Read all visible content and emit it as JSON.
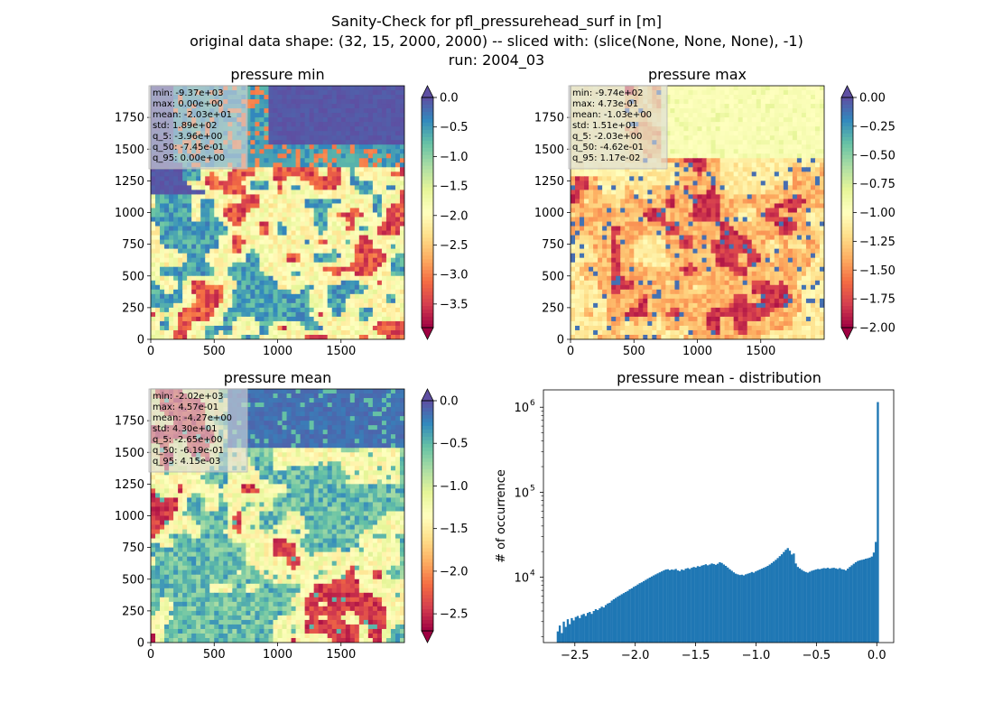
{
  "suptitle": [
    "Sanity-Check for pfl_pressurehead_surf in [m]",
    "original data shape: (32, 15, 2000, 2000) -- sliced with: (slice(None, None, None), -1)",
    "run: 2004_03"
  ],
  "chart_data": [
    {
      "type": "heatmap",
      "title": "pressure min",
      "colormap": "Spectral",
      "xlim": [
        0,
        2000
      ],
      "ylim": [
        0,
        2000
      ],
      "x_ticks": [
        "0",
        "500",
        "1000",
        "1500"
      ],
      "y_ticks": [
        "0",
        "250",
        "500",
        "750",
        "1000",
        "1250",
        "1500",
        "1750"
      ],
      "colorbar": {
        "range": [
          -3.9,
          0.0
        ],
        "extend": "both",
        "ticks": [
          -3.5,
          -3.0,
          -2.5,
          -2.0,
          -1.5,
          -1.0,
          -0.5,
          0.0
        ],
        "tick_labels": [
          "−3.5",
          "−3.0",
          "−2.5",
          "−2.0",
          "−1.5",
          "−1.0",
          "−0.5",
          "0.0"
        ]
      },
      "stats": [
        "min: -9.37e+03",
        "max: 0.00e+00",
        "mean: -2.03e+01",
        "std: 1.89e+02",
        "q_5: -3.96e+00",
        "q_50: -7.45e-01",
        "q_95: 0.00e+00"
      ]
    },
    {
      "type": "heatmap",
      "title": "pressure max",
      "colormap": "Spectral",
      "xlim": [
        0,
        2000
      ],
      "ylim": [
        0,
        2000
      ],
      "x_ticks": [
        "0",
        "500",
        "1000",
        "1500"
      ],
      "y_ticks": [
        "0",
        "250",
        "500",
        "750",
        "1000",
        "1250",
        "1500",
        "1750"
      ],
      "colorbar": {
        "range": [
          -2.0,
          0.0
        ],
        "extend": "both",
        "ticks": [
          -2.0,
          -1.75,
          -1.5,
          -1.25,
          -1.0,
          -0.75,
          -0.5,
          -0.25,
          0.0
        ],
        "tick_labels": [
          "−2.00",
          "−1.75",
          "−1.50",
          "−1.25",
          "−1.00",
          "−0.75",
          "−0.50",
          "−0.25",
          "0.00"
        ]
      },
      "stats": [
        "min: -9.74e+02",
        "max: 4.73e-01",
        "mean: -1.03e+00",
        "std: 1.51e+01",
        "q_5: -2.03e+00",
        "q_50: -4.62e-01",
        "q_95: 1.17e-02"
      ]
    },
    {
      "type": "heatmap",
      "title": "pressure mean",
      "colormap": "Spectral",
      "xlim": [
        0,
        2000
      ],
      "ylim": [
        0,
        2000
      ],
      "x_ticks": [
        "0",
        "500",
        "1000",
        "1500"
      ],
      "y_ticks": [
        "0",
        "250",
        "500",
        "750",
        "1000",
        "1250",
        "1500",
        "1750"
      ],
      "colorbar": {
        "range": [
          -2.7,
          0.0
        ],
        "extend": "both",
        "ticks": [
          -2.5,
          -2.0,
          -1.5,
          -1.0,
          -0.5,
          0.0
        ],
        "tick_labels": [
          "−2.5",
          "−2.0",
          "−1.5",
          "−1.0",
          "−0.5",
          "0.0"
        ]
      },
      "stats": [
        "min: -2.02e+03",
        "max: 4.57e-01",
        "mean: -4.27e+00",
        "std: 4.30e+01",
        "q_5: -2.65e+00",
        "q_50: -6.19e-01",
        "q_95: 4.15e-03"
      ]
    },
    {
      "type": "bar",
      "title": "pressure mean - distribution",
      "ylabel": "# of occurrence",
      "xlabel": "",
      "y_scale": "log",
      "xlim": [
        -2.76,
        0.14
      ],
      "ylim": [
        1700,
        1600000
      ],
      "x_ticks": [
        -2.5,
        -2.0,
        -1.5,
        -1.0,
        -0.5,
        0.0
      ],
      "x_tick_labels": [
        "−2.5",
        "−2.0",
        "−1.5",
        "−1.0",
        "−0.5",
        "0.0"
      ],
      "y_ticks": [
        10000,
        100000,
        1000000
      ],
      "y_tick_labels": [
        "10",
        "10",
        "10"
      ],
      "y_tick_exponents": [
        "4",
        "5",
        "6"
      ],
      "color": "#1f77b4",
      "bins": {
        "start": -2.65,
        "end": 0.0,
        "count": 160
      },
      "counts": [
        2300,
        2700,
        2200,
        3000,
        2600,
        3200,
        2800,
        3300,
        3100,
        3400,
        3500,
        3300,
        3600,
        3700,
        3500,
        3800,
        3900,
        3700,
        4000,
        4200,
        4100,
        4300,
        4500,
        4400,
        4700,
        4900,
        5000,
        5300,
        5500,
        5700,
        5900,
        6100,
        6300,
        6500,
        6700,
        6900,
        7200,
        7400,
        7700,
        7900,
        8200,
        8500,
        8700,
        9000,
        9300,
        9600,
        9900,
        10200,
        10500,
        10800,
        11100,
        11400,
        11700,
        12000,
        12300,
        12400,
        12100,
        12300,
        12200,
        12500,
        12000,
        11800,
        12300,
        12100,
        12600,
        12800,
        12500,
        12900,
        13200,
        13000,
        13500,
        13300,
        13700,
        13900,
        14200,
        13800,
        14100,
        14500,
        14300,
        14000,
        14400,
        15000,
        14700,
        14100,
        13600,
        13000,
        12400,
        11900,
        11400,
        11000,
        10800,
        10600,
        10700,
        10500,
        10800,
        11000,
        11200,
        11500,
        11300,
        11700,
        12000,
        12300,
        12600,
        12900,
        13200,
        13600,
        14100,
        14700,
        15300,
        16000,
        16800,
        17700,
        18600,
        19800,
        21000,
        22000,
        20500,
        18500,
        19000,
        14500,
        13200,
        12700,
        12200,
        11800,
        11500,
        11300,
        11600,
        11900,
        12100,
        12300,
        12500,
        12400,
        12600,
        12800,
        12700,
        12900,
        12600,
        12800,
        12900,
        12700,
        12500,
        12800,
        12400,
        12300,
        12000,
        12600,
        13200,
        13800,
        14400,
        15000,
        15500,
        15800,
        16000,
        16200,
        16500,
        16700,
        17000,
        17500,
        19500,
        26000,
        1150000
      ]
    }
  ]
}
